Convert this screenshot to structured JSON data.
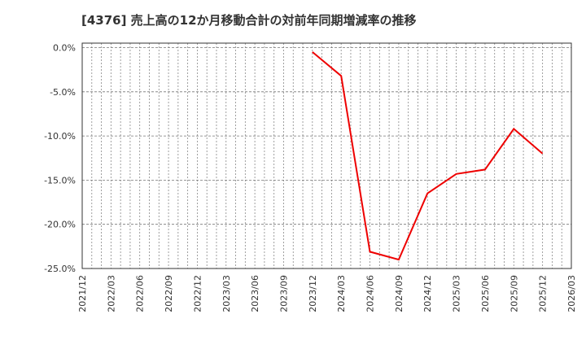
{
  "title": "[4376]  売上高の12か月移動合計の対前年同期増減率の推移",
  "colors": {
    "line": "#ee0000",
    "grid": "#888888",
    "axis": "#333333",
    "text": "#333333",
    "background": "#ffffff"
  },
  "chart_data": {
    "type": "line",
    "title": "[4376]  売上高の12か月移動合計の対前年同期増減率の推移",
    "xlabel": "",
    "ylabel": "",
    "ylim": [
      -25,
      0
    ],
    "yticks": [
      "0.0%",
      "-5.0%",
      "-10.0%",
      "-15.0%",
      "-20.0%",
      "-25.0%"
    ],
    "ytick_values": [
      0,
      -5,
      -10,
      -15,
      -20,
      -25
    ],
    "xticks": [
      "2021/12",
      "2022/03",
      "2022/06",
      "2022/09",
      "2022/12",
      "2023/03",
      "2023/06",
      "2023/09",
      "2023/12",
      "2024/03",
      "2024/06",
      "2024/09",
      "2024/12",
      "2025/03",
      "2025/06",
      "2025/09",
      "2025/12",
      "2026/03"
    ],
    "grid": true,
    "legend": null,
    "series": [
      {
        "name": "売上高の12か月移動合計の対前年同期増減率",
        "color": "#ee0000",
        "x": [
          "2023/12",
          "2024/03",
          "2024/06",
          "2024/09",
          "2024/12",
          "2025/03",
          "2025/06",
          "2025/09",
          "2025/12"
        ],
        "values": [
          -0.5,
          -3.2,
          -23.1,
          -24.0,
          -16.5,
          -14.3,
          -13.8,
          -9.2,
          -12.0
        ]
      }
    ]
  }
}
